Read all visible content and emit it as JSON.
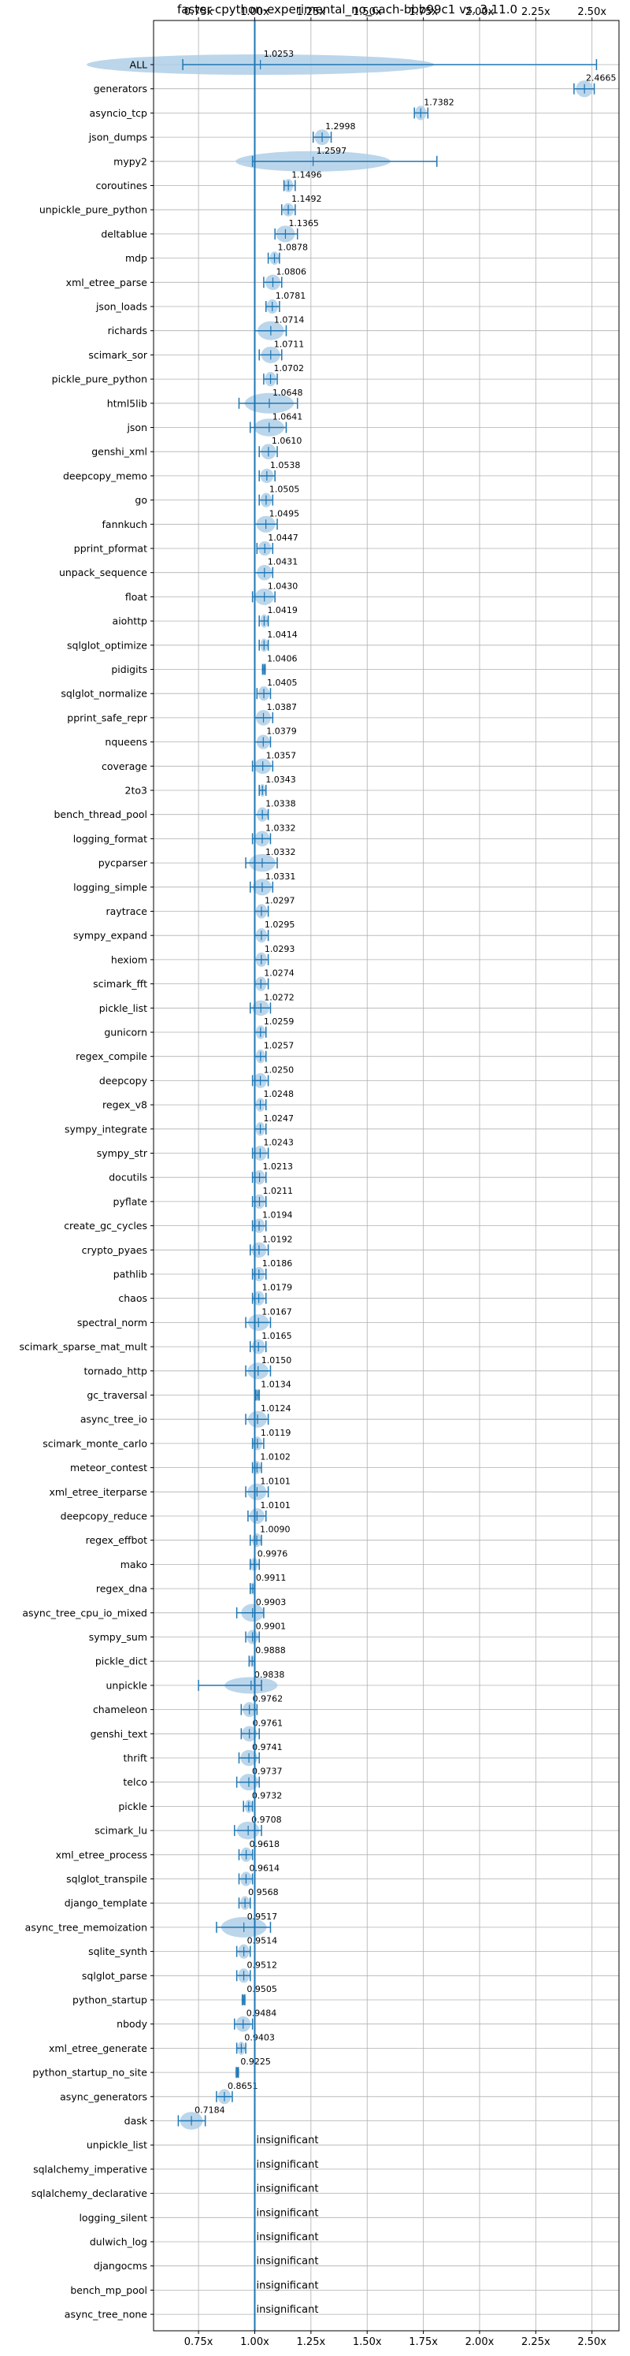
{
  "chart_data": {
    "type": "violin",
    "title": "faster-cpython-experimental_no_cach-bbb99c1 vs. 3.11.0",
    "xlim": [
      0.55,
      2.62
    ],
    "xticks": [
      "0.75x",
      "1.00x",
      "1.25x",
      "1.50x",
      "1.75x",
      "2.00x",
      "2.25x",
      "2.50x"
    ],
    "xtick_values": [
      0.75,
      1.0,
      1.25,
      1.5,
      1.75,
      2.0,
      2.25,
      2.5
    ],
    "reference_line": 1.0,
    "grid": true,
    "colors": {
      "violin": "#aacce6",
      "line": "#1f77b4",
      "grid": "#b0b0b0"
    },
    "insignificant_label": "insignificant",
    "benchmarks": [
      {
        "name": "ALL",
        "label": "1.0253",
        "center": 1.0253,
        "lo": 0.68,
        "hi": 2.52,
        "width": 0.1
      },
      {
        "name": "generators",
        "label": "2.4665",
        "center": 2.4665,
        "lo": 2.42,
        "hi": 2.51,
        "width": 0.05
      },
      {
        "name": "asyncio_tcp",
        "label": "1.7382",
        "center": 1.7382,
        "lo": 1.71,
        "hi": 1.77,
        "width": 0.03
      },
      {
        "name": "json_dumps",
        "label": "1.2998",
        "center": 1.2998,
        "lo": 1.26,
        "hi": 1.34,
        "width": 0.04
      },
      {
        "name": "mypy2",
        "label": "1.2597",
        "center": 1.2597,
        "lo": 0.99,
        "hi": 1.81,
        "width": 0.28
      },
      {
        "name": "coroutines",
        "label": "1.1496",
        "center": 1.1496,
        "lo": 1.13,
        "hi": 1.18,
        "width": 0.02
      },
      {
        "name": "unpickle_pure_python",
        "label": "1.1492",
        "center": 1.1492,
        "lo": 1.12,
        "hi": 1.18,
        "width": 0.02
      },
      {
        "name": "deltablue",
        "label": "1.1365",
        "center": 1.1365,
        "lo": 1.09,
        "hi": 1.19,
        "width": 0.05
      },
      {
        "name": "mdp",
        "label": "1.0878",
        "center": 1.0878,
        "lo": 1.06,
        "hi": 1.11,
        "width": 0.02
      },
      {
        "name": "xml_etree_parse",
        "label": "1.0806",
        "center": 1.0806,
        "lo": 1.04,
        "hi": 1.12,
        "width": 0.04
      },
      {
        "name": "json_loads",
        "label": "1.0781",
        "center": 1.0781,
        "lo": 1.05,
        "hi": 1.11,
        "width": 0.03
      },
      {
        "name": "richards",
        "label": "1.0714",
        "center": 1.0714,
        "lo": 1.0,
        "hi": 1.14,
        "width": 0.07
      },
      {
        "name": "scimark_sor",
        "label": "1.0711",
        "center": 1.0711,
        "lo": 1.02,
        "hi": 1.12,
        "width": 0.05
      },
      {
        "name": "pickle_pure_python",
        "label": "1.0702",
        "center": 1.0702,
        "lo": 1.04,
        "hi": 1.1,
        "width": 0.03
      },
      {
        "name": "html5lib",
        "label": "1.0648",
        "center": 1.0648,
        "lo": 0.93,
        "hi": 1.19,
        "width": 0.09
      },
      {
        "name": "json",
        "label": "1.0641",
        "center": 1.0641,
        "lo": 0.98,
        "hi": 1.14,
        "width": 0.06
      },
      {
        "name": "genshi_xml",
        "label": "1.0610",
        "center": 1.061,
        "lo": 1.02,
        "hi": 1.1,
        "width": 0.04
      },
      {
        "name": "deepcopy_memo",
        "label": "1.0538",
        "center": 1.0538,
        "lo": 1.02,
        "hi": 1.09,
        "width": 0.03
      },
      {
        "name": "go",
        "label": "1.0505",
        "center": 1.0505,
        "lo": 1.02,
        "hi": 1.08,
        "width": 0.03
      },
      {
        "name": "fannkuch",
        "label": "1.0495",
        "center": 1.0495,
        "lo": 1.0,
        "hi": 1.1,
        "width": 0.05
      },
      {
        "name": "pprint_pformat",
        "label": "1.0447",
        "center": 1.0447,
        "lo": 1.01,
        "hi": 1.08,
        "width": 0.03
      },
      {
        "name": "unpack_sequence",
        "label": "1.0431",
        "center": 1.0431,
        "lo": 1.0,
        "hi": 1.08,
        "width": 0.04
      },
      {
        "name": "float",
        "label": "1.0430",
        "center": 1.043,
        "lo": 0.99,
        "hi": 1.09,
        "width": 0.05
      },
      {
        "name": "aiohttp",
        "label": "1.0419",
        "center": 1.0419,
        "lo": 1.02,
        "hi": 1.06,
        "width": 0.02
      },
      {
        "name": "sqlglot_optimize",
        "label": "1.0414",
        "center": 1.0414,
        "lo": 1.02,
        "hi": 1.06,
        "width": 0.02
      },
      {
        "name": "pidigits",
        "label": "1.0406",
        "center": 1.0406,
        "lo": 1.035,
        "hi": 1.046,
        "width": 0.005
      },
      {
        "name": "sqlglot_normalize",
        "label": "1.0405",
        "center": 1.0405,
        "lo": 1.01,
        "hi": 1.07,
        "width": 0.03
      },
      {
        "name": "pprint_safe_repr",
        "label": "1.0387",
        "center": 1.0387,
        "lo": 1.0,
        "hi": 1.08,
        "width": 0.04
      },
      {
        "name": "nqueens",
        "label": "1.0379",
        "center": 1.0379,
        "lo": 1.0,
        "hi": 1.07,
        "width": 0.03
      },
      {
        "name": "coverage",
        "label": "1.0357",
        "center": 1.0357,
        "lo": 0.99,
        "hi": 1.08,
        "width": 0.04
      },
      {
        "name": "2to3",
        "label": "1.0343",
        "center": 1.0343,
        "lo": 1.02,
        "hi": 1.05,
        "width": 0.015
      },
      {
        "name": "bench_thread_pool",
        "label": "1.0338",
        "center": 1.0338,
        "lo": 1.0,
        "hi": 1.06,
        "width": 0.03
      },
      {
        "name": "logging_format",
        "label": "1.0332",
        "center": 1.0332,
        "lo": 0.99,
        "hi": 1.07,
        "width": 0.04
      },
      {
        "name": "pycparser",
        "label": "1.0332",
        "center": 1.0332,
        "lo": 0.96,
        "hi": 1.1,
        "width": 0.06
      },
      {
        "name": "logging_simple",
        "label": "1.0331",
        "center": 1.0331,
        "lo": 0.98,
        "hi": 1.08,
        "width": 0.05
      },
      {
        "name": "raytrace",
        "label": "1.0297",
        "center": 1.0297,
        "lo": 1.0,
        "hi": 1.06,
        "width": 0.03
      },
      {
        "name": "sympy_expand",
        "label": "1.0295",
        "center": 1.0295,
        "lo": 1.0,
        "hi": 1.06,
        "width": 0.03
      },
      {
        "name": "hexiom",
        "label": "1.0293",
        "center": 1.0293,
        "lo": 1.0,
        "hi": 1.06,
        "width": 0.03
      },
      {
        "name": "scimark_fft",
        "label": "1.0274",
        "center": 1.0274,
        "lo": 1.0,
        "hi": 1.06,
        "width": 0.03
      },
      {
        "name": "pickle_list",
        "label": "1.0272",
        "center": 1.0272,
        "lo": 0.98,
        "hi": 1.07,
        "width": 0.04
      },
      {
        "name": "gunicorn",
        "label": "1.0259",
        "center": 1.0259,
        "lo": 1.0,
        "hi": 1.05,
        "width": 0.025
      },
      {
        "name": "regex_compile",
        "label": "1.0257",
        "center": 1.0257,
        "lo": 1.0,
        "hi": 1.05,
        "width": 0.025
      },
      {
        "name": "deepcopy",
        "label": "1.0250",
        "center": 1.025,
        "lo": 0.99,
        "hi": 1.06,
        "width": 0.035
      },
      {
        "name": "regex_v8",
        "label": "1.0248",
        "center": 1.0248,
        "lo": 1.0,
        "hi": 1.05,
        "width": 0.025
      },
      {
        "name": "sympy_integrate",
        "label": "1.0247",
        "center": 1.0247,
        "lo": 1.0,
        "hi": 1.05,
        "width": 0.025
      },
      {
        "name": "sympy_str",
        "label": "1.0243",
        "center": 1.0243,
        "lo": 0.99,
        "hi": 1.06,
        "width": 0.035
      },
      {
        "name": "docutils",
        "label": "1.0213",
        "center": 1.0213,
        "lo": 0.99,
        "hi": 1.05,
        "width": 0.03
      },
      {
        "name": "pyflate",
        "label": "1.0211",
        "center": 1.0211,
        "lo": 0.99,
        "hi": 1.05,
        "width": 0.03
      },
      {
        "name": "create_gc_cycles",
        "label": "1.0194",
        "center": 1.0194,
        "lo": 0.99,
        "hi": 1.05,
        "width": 0.03
      },
      {
        "name": "crypto_pyaes",
        "label": "1.0192",
        "center": 1.0192,
        "lo": 0.98,
        "hi": 1.06,
        "width": 0.04
      },
      {
        "name": "pathlib",
        "label": "1.0186",
        "center": 1.0186,
        "lo": 0.99,
        "hi": 1.05,
        "width": 0.03
      },
      {
        "name": "chaos",
        "label": "1.0179",
        "center": 1.0179,
        "lo": 0.99,
        "hi": 1.05,
        "width": 0.03
      },
      {
        "name": "spectral_norm",
        "label": "1.0167",
        "center": 1.0167,
        "lo": 0.96,
        "hi": 1.07,
        "width": 0.05
      },
      {
        "name": "scimark_sparse_mat_mult",
        "label": "1.0165",
        "center": 1.0165,
        "lo": 0.98,
        "hi": 1.05,
        "width": 0.035
      },
      {
        "name": "tornado_http",
        "label": "1.0150",
        "center": 1.015,
        "lo": 0.96,
        "hi": 1.07,
        "width": 0.05
      },
      {
        "name": "gc_traversal",
        "label": "1.0134",
        "center": 1.0134,
        "lo": 1.005,
        "hi": 1.02,
        "width": 0.008
      },
      {
        "name": "async_tree_io",
        "label": "1.0124",
        "center": 1.0124,
        "lo": 0.96,
        "hi": 1.06,
        "width": 0.05
      },
      {
        "name": "scimark_monte_carlo",
        "label": "1.0119",
        "center": 1.0119,
        "lo": 0.99,
        "hi": 1.04,
        "width": 0.025
      },
      {
        "name": "meteor_contest",
        "label": "1.0102",
        "center": 1.0102,
        "lo": 0.99,
        "hi": 1.03,
        "width": 0.02
      },
      {
        "name": "xml_etree_iterparse",
        "label": "1.0101",
        "center": 1.0101,
        "lo": 0.96,
        "hi": 1.06,
        "width": 0.05
      },
      {
        "name": "deepcopy_reduce",
        "label": "1.0101",
        "center": 1.0101,
        "lo": 0.97,
        "hi": 1.05,
        "width": 0.04
      },
      {
        "name": "regex_effbot",
        "label": "1.0090",
        "center": 1.009,
        "lo": 0.98,
        "hi": 1.03,
        "width": 0.025
      },
      {
        "name": "mako",
        "label": "0.9976",
        "center": 0.9976,
        "lo": 0.98,
        "hi": 1.02,
        "width": 0.02
      },
      {
        "name": "regex_dna",
        "label": "0.9911",
        "center": 0.9911,
        "lo": 0.98,
        "hi": 1.0,
        "width": 0.01
      },
      {
        "name": "async_tree_cpu_io_mixed",
        "label": "0.9903",
        "center": 0.9903,
        "lo": 0.92,
        "hi": 1.04,
        "width": 0.06
      },
      {
        "name": "sympy_sum",
        "label": "0.9901",
        "center": 0.9901,
        "lo": 0.96,
        "hi": 1.02,
        "width": 0.03
      },
      {
        "name": "pickle_dict",
        "label": "0.9888",
        "center": 0.9888,
        "lo": 0.975,
        "hi": 1.0,
        "width": 0.012
      },
      {
        "name": "unpickle",
        "label": "0.9838",
        "center": 0.9838,
        "lo": 0.75,
        "hi": 1.03,
        "width": 0.05
      },
      {
        "name": "chameleon",
        "label": "0.9762",
        "center": 0.9762,
        "lo": 0.94,
        "hi": 1.01,
        "width": 0.035
      },
      {
        "name": "genshi_text",
        "label": "0.9761",
        "center": 0.9761,
        "lo": 0.94,
        "hi": 1.02,
        "width": 0.04
      },
      {
        "name": "thrift",
        "label": "0.9741",
        "center": 0.9741,
        "lo": 0.93,
        "hi": 1.02,
        "width": 0.045
      },
      {
        "name": "telco",
        "label": "0.9737",
        "center": 0.9737,
        "lo": 0.92,
        "hi": 1.02,
        "width": 0.05
      },
      {
        "name": "pickle",
        "label": "0.9732",
        "center": 0.9732,
        "lo": 0.95,
        "hi": 0.99,
        "width": 0.02
      },
      {
        "name": "scimark_lu",
        "label": "0.9708",
        "center": 0.9708,
        "lo": 0.91,
        "hi": 1.03,
        "width": 0.06
      },
      {
        "name": "xml_etree_process",
        "label": "0.9618",
        "center": 0.9618,
        "lo": 0.93,
        "hi": 0.99,
        "width": 0.03
      },
      {
        "name": "sqlglot_transpile",
        "label": "0.9614",
        "center": 0.9614,
        "lo": 0.93,
        "hi": 0.99,
        "width": 0.03
      },
      {
        "name": "django_template",
        "label": "0.9568",
        "center": 0.9568,
        "lo": 0.93,
        "hi": 0.98,
        "width": 0.025
      },
      {
        "name": "async_tree_memoization",
        "label": "0.9517",
        "center": 0.9517,
        "lo": 0.83,
        "hi": 1.07,
        "width": 0.1
      },
      {
        "name": "sqlite_synth",
        "label": "0.9514",
        "center": 0.9514,
        "lo": 0.92,
        "hi": 0.98,
        "width": 0.03
      },
      {
        "name": "sqlglot_parse",
        "label": "0.9512",
        "center": 0.9512,
        "lo": 0.92,
        "hi": 0.98,
        "width": 0.03
      },
      {
        "name": "python_startup",
        "label": "0.9505",
        "center": 0.9505,
        "lo": 0.945,
        "hi": 0.956,
        "width": 0.005
      },
      {
        "name": "nbody",
        "label": "0.9484",
        "center": 0.9484,
        "lo": 0.91,
        "hi": 0.99,
        "width": 0.04
      },
      {
        "name": "xml_etree_generate",
        "label": "0.9403",
        "center": 0.9403,
        "lo": 0.92,
        "hi": 0.96,
        "width": 0.02
      },
      {
        "name": "python_startup_no_site",
        "label": "0.9225",
        "center": 0.9225,
        "lo": 0.918,
        "hi": 0.927,
        "width": 0.004
      },
      {
        "name": "async_generators",
        "label": "0.8651",
        "center": 0.8651,
        "lo": 0.83,
        "hi": 0.9,
        "width": 0.035
      },
      {
        "name": "dask",
        "label": "0.7184",
        "center": 0.7184,
        "lo": 0.66,
        "hi": 0.78,
        "width": 0.06
      },
      {
        "name": "unpickle_list",
        "label": "insignificant",
        "insignificant": true
      },
      {
        "name": "sqlalchemy_imperative",
        "label": "insignificant",
        "insignificant": true
      },
      {
        "name": "sqlalchemy_declarative",
        "label": "insignificant",
        "insignificant": true
      },
      {
        "name": "logging_silent",
        "label": "insignificant",
        "insignificant": true
      },
      {
        "name": "dulwich_log",
        "label": "insignificant",
        "insignificant": true
      },
      {
        "name": "djangocms",
        "label": "insignificant",
        "insignificant": true
      },
      {
        "name": "bench_mp_pool",
        "label": "insignificant",
        "insignificant": true
      },
      {
        "name": "async_tree_none",
        "label": "insignificant",
        "insignificant": true
      }
    ]
  }
}
